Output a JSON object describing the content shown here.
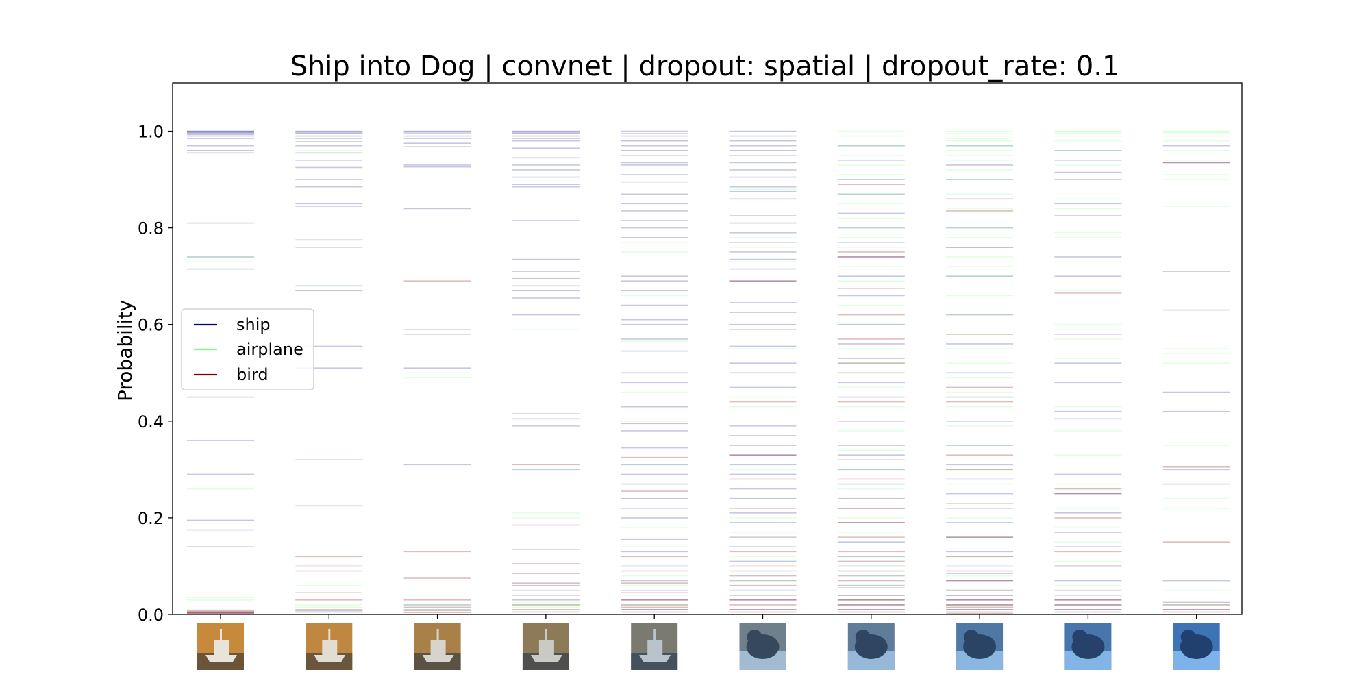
{
  "chart_data": {
    "type": "line",
    "title": "Ship into Dog | convnet | dropout: spatial | dropout_rate: 0.1",
    "xlabel": "",
    "ylabel": "Probability",
    "ylim": [
      0.0,
      1.1
    ],
    "y_ticks": [
      "0.0",
      "0.2",
      "0.4",
      "0.6",
      "0.8",
      "1.0"
    ],
    "grid": false,
    "legend_position": "center-left",
    "legend": [
      "ship",
      "airplane",
      "bird"
    ],
    "colors": {
      "ship": "#00007f",
      "airplane": "#7dff7a",
      "bird": "#7f0000"
    },
    "interpolation_steps": [
      0,
      1,
      2,
      3,
      4,
      5,
      6,
      7,
      8,
      9
    ],
    "thumbnails": [
      {
        "step": 0,
        "subject": "ship",
        "palette": [
          "#c78a3c",
          "#e9e4da",
          "#5a4a3a"
        ]
      },
      {
        "step": 1,
        "subject": "ship",
        "palette": [
          "#bf873f",
          "#e2ddd3",
          "#5b4c3d"
        ]
      },
      {
        "step": 2,
        "subject": "ship",
        "palette": [
          "#a88048",
          "#d7d4cd",
          "#4e4a44"
        ]
      },
      {
        "step": 3,
        "subject": "ship",
        "palette": [
          "#8d7a58",
          "#c9c9c6",
          "#44484c"
        ]
      },
      {
        "step": 4,
        "subject": "ship",
        "palette": [
          "#7b7a70",
          "#b8c3cc",
          "#3c4a58"
        ]
      },
      {
        "step": 5,
        "subject": "dog",
        "palette": [
          "#6f7f8c",
          "#a9c2d8",
          "#36485c"
        ]
      },
      {
        "step": 6,
        "subject": "dog",
        "palette": [
          "#5f7c9a",
          "#9cc0e0",
          "#2f4662"
        ]
      },
      {
        "step": 7,
        "subject": "dog",
        "palette": [
          "#5078a5",
          "#90bde6",
          "#2a4466"
        ]
      },
      {
        "step": 8,
        "subject": "dog",
        "palette": [
          "#4676ad",
          "#88bbeb",
          "#26426a"
        ]
      },
      {
        "step": 9,
        "subject": "dog",
        "palette": [
          "#3e74b5",
          "#84b9f0",
          "#22406e"
        ]
      }
    ],
    "series": [
      {
        "name": "ship",
        "values": [
          [
            1.0,
            1.0,
            0.999,
            0.998,
            0.997,
            0.995,
            0.993,
            0.99,
            0.985,
            0.97,
            0.96,
            0.955,
            0.81,
            0.74,
            0.715,
            0.45,
            0.36,
            0.29,
            0.195,
            0.175,
            0.14,
            0.005,
            0.003
          ],
          [
            1.0,
            0.999,
            0.997,
            0.995,
            0.99,
            0.985,
            0.978,
            0.97,
            0.955,
            0.94,
            0.925,
            0.9,
            0.885,
            0.85,
            0.845,
            0.775,
            0.76,
            0.68,
            0.67,
            0.555,
            0.51,
            0.225,
            0.09,
            0.008
          ],
          [
            1.0,
            0.999,
            0.998,
            0.995,
            0.99,
            0.985,
            0.975,
            0.968,
            0.93,
            0.926,
            0.84,
            0.59,
            0.58,
            0.51,
            0.31,
            0.02,
            0.01
          ],
          [
            1.0,
            0.999,
            0.997,
            0.995,
            0.99,
            0.985,
            0.98,
            0.965,
            0.945,
            0.93,
            0.92,
            0.905,
            0.89,
            0.885,
            0.815,
            0.735,
            0.71,
            0.695,
            0.68,
            0.67,
            0.655,
            0.62,
            0.415,
            0.405,
            0.39,
            0.3,
            0.135,
            0.06,
            0.05,
            0.03
          ],
          [
            1.0,
            0.995,
            0.99,
            0.98,
            0.97,
            0.96,
            0.95,
            0.935,
            0.93,
            0.91,
            0.895,
            0.87,
            0.85,
            0.835,
            0.815,
            0.8,
            0.78,
            0.7,
            0.69,
            0.67,
            0.64,
            0.61,
            0.6,
            0.57,
            0.545,
            0.5,
            0.48,
            0.43,
            0.395,
            0.38,
            0.345,
            0.31,
            0.29,
            0.27,
            0.24,
            0.22,
            0.2,
            0.155,
            0.13,
            0.1,
            0.07,
            0.05,
            0.03,
            0.01
          ],
          [
            1.0,
            0.99,
            0.98,
            0.97,
            0.96,
            0.95,
            0.935,
            0.92,
            0.905,
            0.885,
            0.875,
            0.86,
            0.825,
            0.81,
            0.79,
            0.77,
            0.75,
            0.735,
            0.715,
            0.69,
            0.645,
            0.625,
            0.6,
            0.59,
            0.555,
            0.52,
            0.5,
            0.47,
            0.39,
            0.37,
            0.35,
            0.33,
            0.31,
            0.29,
            0.26,
            0.24,
            0.21,
            0.19,
            0.16,
            0.14,
            0.11,
            0.09,
            0.07,
            0.05,
            0.03,
            0.01
          ],
          [
            0.97,
            0.94,
            0.9,
            0.87,
            0.83,
            0.8,
            0.77,
            0.74,
            0.7,
            0.66,
            0.6,
            0.56,
            0.53,
            0.48,
            0.45,
            0.4,
            0.35,
            0.33,
            0.3,
            0.27,
            0.24,
            0.22,
            0.19,
            0.15,
            0.12,
            0.1,
            0.08,
            0.06,
            0.04,
            0.03,
            0.02,
            0.01
          ],
          [
            0.97,
            0.93,
            0.9,
            0.86,
            0.8,
            0.76,
            0.7,
            0.62,
            0.56,
            0.5,
            0.45,
            0.4,
            0.35,
            0.31,
            0.28,
            0.25,
            0.22,
            0.19,
            0.16,
            0.13,
            0.1,
            0.085,
            0.07,
            0.05,
            0.04,
            0.03,
            0.02,
            0.01
          ],
          [
            0.96,
            0.94,
            0.915,
            0.9,
            0.85,
            0.825,
            0.74,
            0.7,
            0.58,
            0.52,
            0.48,
            0.42,
            0.405,
            0.29,
            0.25,
            0.21,
            0.17,
            0.14,
            0.1,
            0.07,
            0.04,
            0.03,
            0.02,
            0.01
          ],
          [
            0.97,
            0.935,
            0.71,
            0.63,
            0.46,
            0.42,
            0.3,
            0.27,
            0.07,
            0.025,
            0.01
          ]
        ]
      },
      {
        "name": "airplane",
        "values": [
          [
            0.74,
            0.73,
            0.26,
            0.035,
            0.03,
            0.01
          ],
          [
            0.96,
            0.68,
            0.06,
            0.02,
            0.015,
            0.005
          ],
          [
            0.5,
            0.49,
            0.02,
            0.01
          ],
          [
            0.59,
            0.21,
            0.2,
            0.025,
            0.02,
            0.015,
            0.01
          ],
          [
            0.77,
            0.75,
            0.66,
            0.565,
            0.46,
            0.4,
            0.31,
            0.18,
            0.14,
            0.1,
            0.08,
            0.06,
            0.04,
            0.02
          ],
          [
            0.88,
            0.78,
            0.76,
            0.73,
            0.55,
            0.45,
            0.43,
            0.3,
            0.2,
            0.17,
            0.12,
            0.07,
            0.04
          ],
          [
            1.0,
            0.99,
            0.97,
            0.95,
            0.93,
            0.91,
            0.9,
            0.87,
            0.85,
            0.82,
            0.8,
            0.78,
            0.76,
            0.72,
            0.69,
            0.64,
            0.6,
            0.55,
            0.52,
            0.47,
            0.43,
            0.38,
            0.34,
            0.3,
            0.26,
            0.2,
            0.17,
            0.12,
            0.09,
            0.06,
            0.03
          ],
          [
            1.0,
            0.995,
            0.99,
            0.985,
            0.98,
            0.97,
            0.96,
            0.95,
            0.94,
            0.92,
            0.9,
            0.87,
            0.84,
            0.8,
            0.78,
            0.74,
            0.72,
            0.7,
            0.66,
            0.62,
            0.58,
            0.55,
            0.52,
            0.49,
            0.46,
            0.43,
            0.39,
            0.35,
            0.3,
            0.27,
            0.23,
            0.2,
            0.16,
            0.12,
            0.08,
            0.05,
            0.02
          ],
          [
            1.0,
            0.999,
            0.998,
            0.995,
            0.99,
            0.98,
            0.96,
            0.93,
            0.86,
            0.84,
            0.79,
            0.78,
            0.73,
            0.67,
            0.6,
            0.59,
            0.57,
            0.53,
            0.43,
            0.38,
            0.33,
            0.27,
            0.22,
            0.18,
            0.15,
            0.11,
            0.06,
            0.05
          ],
          [
            1.0,
            0.999,
            0.997,
            0.99,
            0.98,
            0.96,
            0.94,
            0.91,
            0.9,
            0.845,
            0.55,
            0.54,
            0.52,
            0.35,
            0.24,
            0.22,
            0.05,
            0.02
          ]
        ]
      },
      {
        "name": "bird",
        "values": [
          [
            0.008,
            0.006,
            0.004,
            0.003,
            0.002
          ],
          [
            0.32,
            0.12,
            0.1,
            0.045,
            0.03,
            0.01,
            0.005
          ],
          [
            0.69,
            0.13,
            0.075,
            0.03,
            0.015,
            0.008,
            0.004
          ],
          [
            0.31,
            0.185,
            0.105,
            0.085,
            0.065,
            0.04,
            0.02,
            0.01,
            0.005
          ],
          [
            0.325,
            0.255,
            0.12,
            0.09,
            0.065,
            0.045,
            0.03,
            0.02,
            0.015,
            0.01,
            0.005
          ],
          [
            0.69,
            0.44,
            0.33,
            0.28,
            0.22,
            0.13,
            0.1,
            0.08,
            0.06,
            0.04,
            0.03,
            0.02,
            0.01,
            0.005
          ],
          [
            0.89,
            0.75,
            0.74,
            0.675,
            0.62,
            0.57,
            0.52,
            0.5,
            0.44,
            0.32,
            0.28,
            0.22,
            0.19,
            0.16,
            0.13,
            0.11,
            0.09,
            0.07,
            0.055,
            0.04,
            0.03,
            0.02,
            0.01,
            0.005
          ],
          [
            0.835,
            0.76,
            0.58,
            0.47,
            0.44,
            0.33,
            0.3,
            0.23,
            0.16,
            0.12,
            0.09,
            0.07,
            0.05,
            0.04,
            0.03,
            0.02,
            0.015,
            0.01,
            0.005,
            0.002
          ],
          [
            0.665,
            0.26,
            0.25,
            0.2,
            0.13,
            0.1,
            0.05,
            0.03,
            0.02,
            0.01,
            0.005
          ],
          [
            0.935,
            0.305,
            0.15,
            0.02,
            0.01,
            0.005
          ]
        ]
      }
    ]
  }
}
